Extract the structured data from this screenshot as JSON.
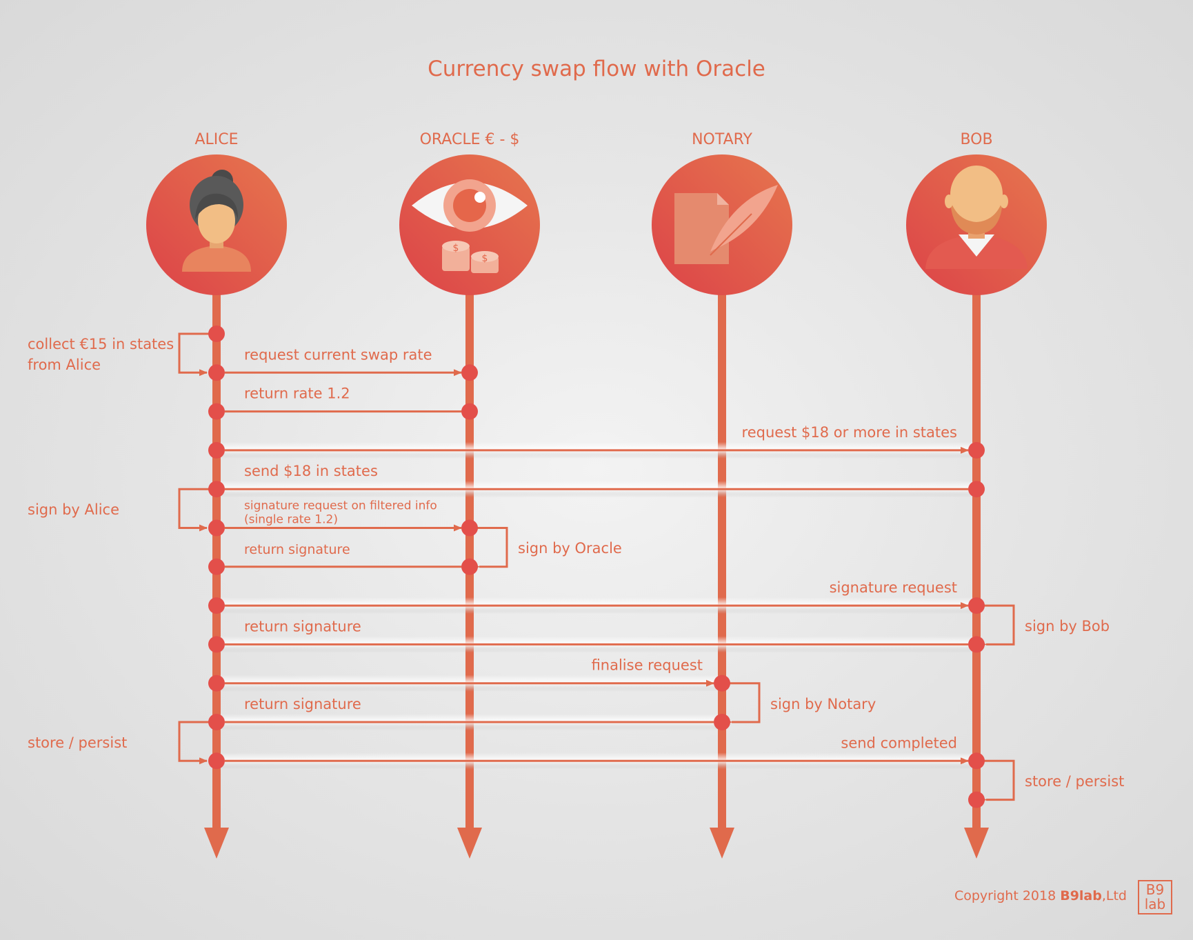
{
  "title": "Currency swap flow with Oracle",
  "colors": {
    "accent": "#e06a4c",
    "circle_dark": "#dd4a4a",
    "background": "#e4e4e4"
  },
  "actors": [
    {
      "id": "alice",
      "label": "ALICE",
      "icon": "woman-avatar-icon"
    },
    {
      "id": "oracle",
      "label": "ORACLE € - $",
      "icon": "eye-coins-icon"
    },
    {
      "id": "notary",
      "label": "NOTARY",
      "icon": "document-quill-icon"
    },
    {
      "id": "bob",
      "label": "BOB",
      "icon": "bearded-man-avatar-icon"
    }
  ],
  "messages": [
    {
      "from": "alice",
      "to": "oracle",
      "label": "request current swap rate"
    },
    {
      "from": "oracle",
      "to": "alice",
      "label": "return rate 1.2"
    },
    {
      "from": "alice",
      "to": "bob",
      "label": "request $18 or more in states"
    },
    {
      "from": "bob",
      "to": "alice",
      "label": "send $18 in states"
    },
    {
      "from": "alice",
      "to": "oracle",
      "label": "signature request on filtered info\n(single rate 1.2)"
    },
    {
      "from": "oracle",
      "to": "alice",
      "label": "return signature"
    },
    {
      "from": "alice",
      "to": "bob",
      "label": "signature request"
    },
    {
      "from": "bob",
      "to": "alice",
      "label": "return signature"
    },
    {
      "from": "alice",
      "to": "notary",
      "label": "finalise request"
    },
    {
      "from": "notary",
      "to": "alice",
      "label": "return signature"
    },
    {
      "from": "alice",
      "to": "bob",
      "label": "send completed"
    }
  ],
  "self_actions": [
    {
      "actor": "alice",
      "label": "collect €15 in states\nfrom Alice"
    },
    {
      "actor": "alice",
      "label": "sign by Alice"
    },
    {
      "actor": "oracle",
      "label": "sign by Oracle"
    },
    {
      "actor": "bob",
      "label": "sign by Bob"
    },
    {
      "actor": "notary",
      "label": "sign by Notary"
    },
    {
      "actor": "alice",
      "label": "store / persist"
    },
    {
      "actor": "bob",
      "label": "store / persist"
    }
  ],
  "footer": {
    "prefix": "Copyright 2018 ",
    "brand": "B9lab",
    "suffix": ",Ltd",
    "logo_line1": "B9",
    "logo_line2": "lab"
  }
}
